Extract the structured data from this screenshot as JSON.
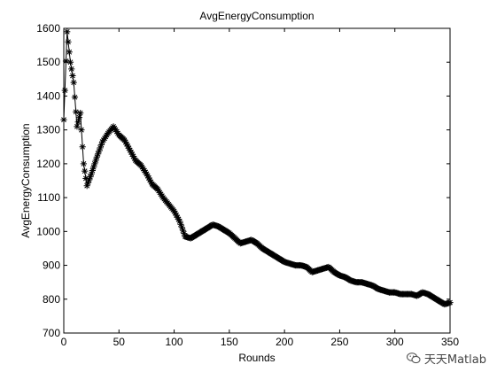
{
  "chart_data": {
    "type": "line",
    "title": "AvgEnergyConsumption",
    "xlabel": "Rounds",
    "ylabel": "AvgEnergyConsumption",
    "xlim": [
      0,
      350
    ],
    "ylim": [
      700,
      1600
    ],
    "xticks": [
      0,
      50,
      100,
      150,
      200,
      250,
      300,
      350
    ],
    "yticks": [
      700,
      800,
      900,
      1000,
      1100,
      1200,
      1300,
      1400,
      1500,
      1600
    ],
    "grid": false,
    "marker": "asterisk",
    "line_color": "#000000",
    "series": [
      {
        "x": [
          0,
          3,
          6,
          9,
          12,
          15,
          18,
          21,
          25,
          30,
          35,
          40,
          45,
          50,
          55,
          60,
          65,
          70,
          75,
          80,
          85,
          90,
          95,
          100,
          105,
          110,
          115,
          120,
          125,
          130,
          135,
          140,
          145,
          150,
          155,
          160,
          165,
          170,
          175,
          180,
          185,
          190,
          195,
          200,
          205,
          210,
          215,
          220,
          225,
          230,
          235,
          240,
          245,
          250,
          255,
          260,
          265,
          270,
          275,
          280,
          285,
          290,
          295,
          300,
          305,
          310,
          315,
          320,
          325,
          330,
          335,
          340,
          345,
          350
        ],
        "y": [
          1330,
          1590,
          1500,
          1440,
          1310,
          1350,
          1200,
          1135,
          1170,
          1220,
          1265,
          1290,
          1310,
          1285,
          1270,
          1240,
          1210,
          1195,
          1170,
          1140,
          1125,
          1100,
          1080,
          1060,
          1030,
          985,
          980,
          990,
          1000,
          1010,
          1020,
          1015,
          1005,
          995,
          980,
          965,
          970,
          975,
          965,
          950,
          940,
          930,
          920,
          910,
          905,
          900,
          900,
          895,
          880,
          885,
          890,
          895,
          880,
          870,
          865,
          855,
          850,
          850,
          845,
          840,
          830,
          825,
          820,
          820,
          815,
          815,
          815,
          810,
          820,
          815,
          805,
          795,
          785,
          790
        ]
      }
    ]
  },
  "watermark": {
    "text": "天天Matlab",
    "icon": "wechat-icon"
  }
}
